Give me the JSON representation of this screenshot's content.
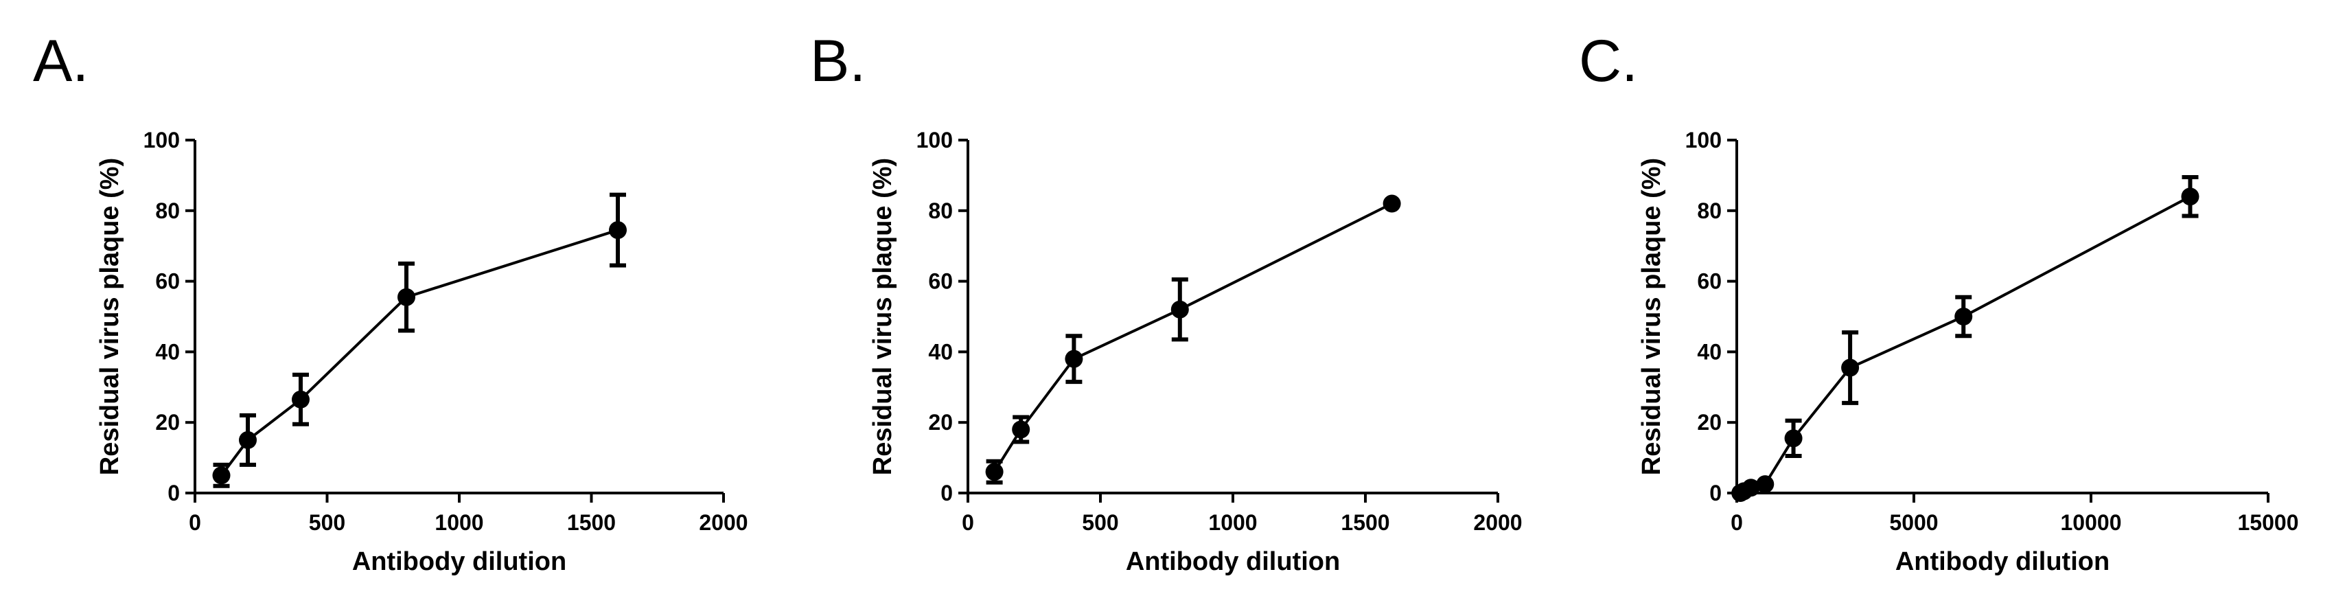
{
  "chart_data": [
    {
      "panel_label": "A.",
      "type": "line",
      "xlabel": "Antibody dilution",
      "ylabel": "Residual virus plaque (%)",
      "xlim": [
        0,
        2000
      ],
      "ylim": [
        0,
        100
      ],
      "xticks": [
        0,
        500,
        1000,
        1500,
        2000
      ],
      "yticks": [
        0,
        20,
        40,
        60,
        80,
        100
      ],
      "grid": false,
      "series": [
        {
          "x": [
            100,
            200,
            400,
            800,
            1600
          ],
          "y": [
            5,
            15,
            26.5,
            55.5,
            74.5
          ],
          "err": [
            3,
            7,
            7,
            9.5,
            10
          ]
        }
      ]
    },
    {
      "panel_label": "B.",
      "type": "line",
      "xlabel": "Antibody dilution",
      "ylabel": "Residual virus plaque (%)",
      "xlim": [
        0,
        2000
      ],
      "ylim": [
        0,
        100
      ],
      "xticks": [
        0,
        500,
        1000,
        1500,
        2000
      ],
      "yticks": [
        0,
        20,
        40,
        60,
        80,
        100
      ],
      "grid": false,
      "series": [
        {
          "x": [
            100,
            200,
            400,
            800,
            1600
          ],
          "y": [
            6,
            18,
            38,
            52,
            82
          ],
          "err": [
            3,
            3.5,
            6.5,
            8.5,
            0
          ]
        }
      ]
    },
    {
      "panel_label": "C.",
      "type": "line",
      "xlabel": "Antibody dilution",
      "ylabel": "Residual virus plaque (%)",
      "xlim": [
        0,
        15000
      ],
      "ylim": [
        0,
        100
      ],
      "xticks": [
        0,
        5000,
        10000,
        15000
      ],
      "yticks": [
        0,
        20,
        40,
        60,
        80,
        100
      ],
      "grid": false,
      "series": [
        {
          "x": [
            100,
            200,
            400,
            800,
            1600,
            3200,
            6400,
            12800
          ],
          "y": [
            0,
            0.5,
            1.5,
            2.5,
            15.5,
            35.5,
            50,
            84
          ],
          "err": [
            0,
            0,
            0,
            0,
            5,
            10,
            5.5,
            5.5
          ]
        }
      ]
    }
  ]
}
